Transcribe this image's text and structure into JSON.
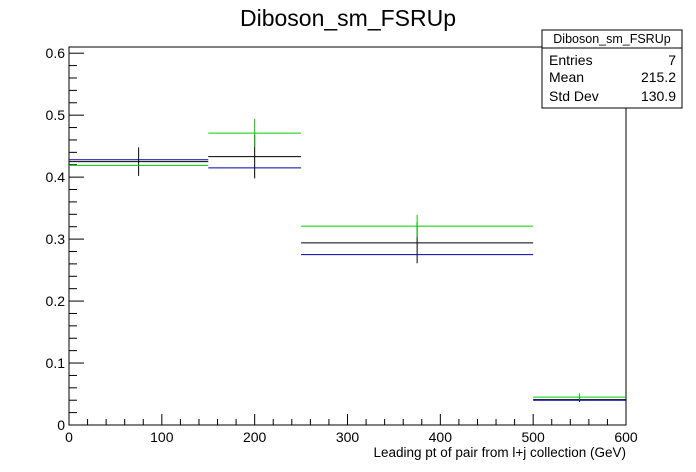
{
  "chart_data": {
    "type": "histogram",
    "title": "Diboson_sm_FSRUp",
    "xlabel": "Leading pt of pair from l+j collection (GeV)",
    "ylabel": "",
    "xlim": [
      0,
      600
    ],
    "ylim": [
      0,
      0.61
    ],
    "x_ticks": [
      0,
      100,
      200,
      300,
      400,
      500,
      600
    ],
    "y_ticks": [
      0,
      0.1,
      0.2,
      0.3,
      0.4,
      0.5,
      0.6
    ],
    "x_tick_labels": [
      "0",
      "100",
      "200",
      "300",
      "400",
      "500",
      "600"
    ],
    "y_tick_labels": [
      "0",
      "0.1",
      "0.2",
      "0.3",
      "0.4",
      "0.5",
      "0.6"
    ],
    "bin_edges": [
      0,
      150,
      250,
      500,
      600
    ],
    "series": [
      {
        "color": "#000000",
        "values": [
          0.425,
          0.433,
          0.294,
          0.041
        ],
        "errors": [
          0.023,
          0.035,
          0.033,
          0.004
        ]
      },
      {
        "color": "#00cc00",
        "values": [
          0.419,
          0.471,
          0.321,
          0.045
        ],
        "errors": [
          0.0,
          0.023,
          0.018,
          0.006
        ]
      },
      {
        "color": "#0000aa",
        "values": [
          0.428,
          0.415,
          0.275,
          0.04
        ],
        "errors": [
          0.0,
          0.0,
          0.0,
          0.0
        ]
      }
    ],
    "grid": false,
    "stats_box": {
      "title": "Diboson_sm_FSRUp",
      "entries": [
        {
          "label": "Entries",
          "value": "7"
        },
        {
          "label": "Mean",
          "value": "215.2"
        },
        {
          "label": "Std Dev",
          "value": "130.9"
        }
      ],
      "position": "top-right"
    }
  }
}
